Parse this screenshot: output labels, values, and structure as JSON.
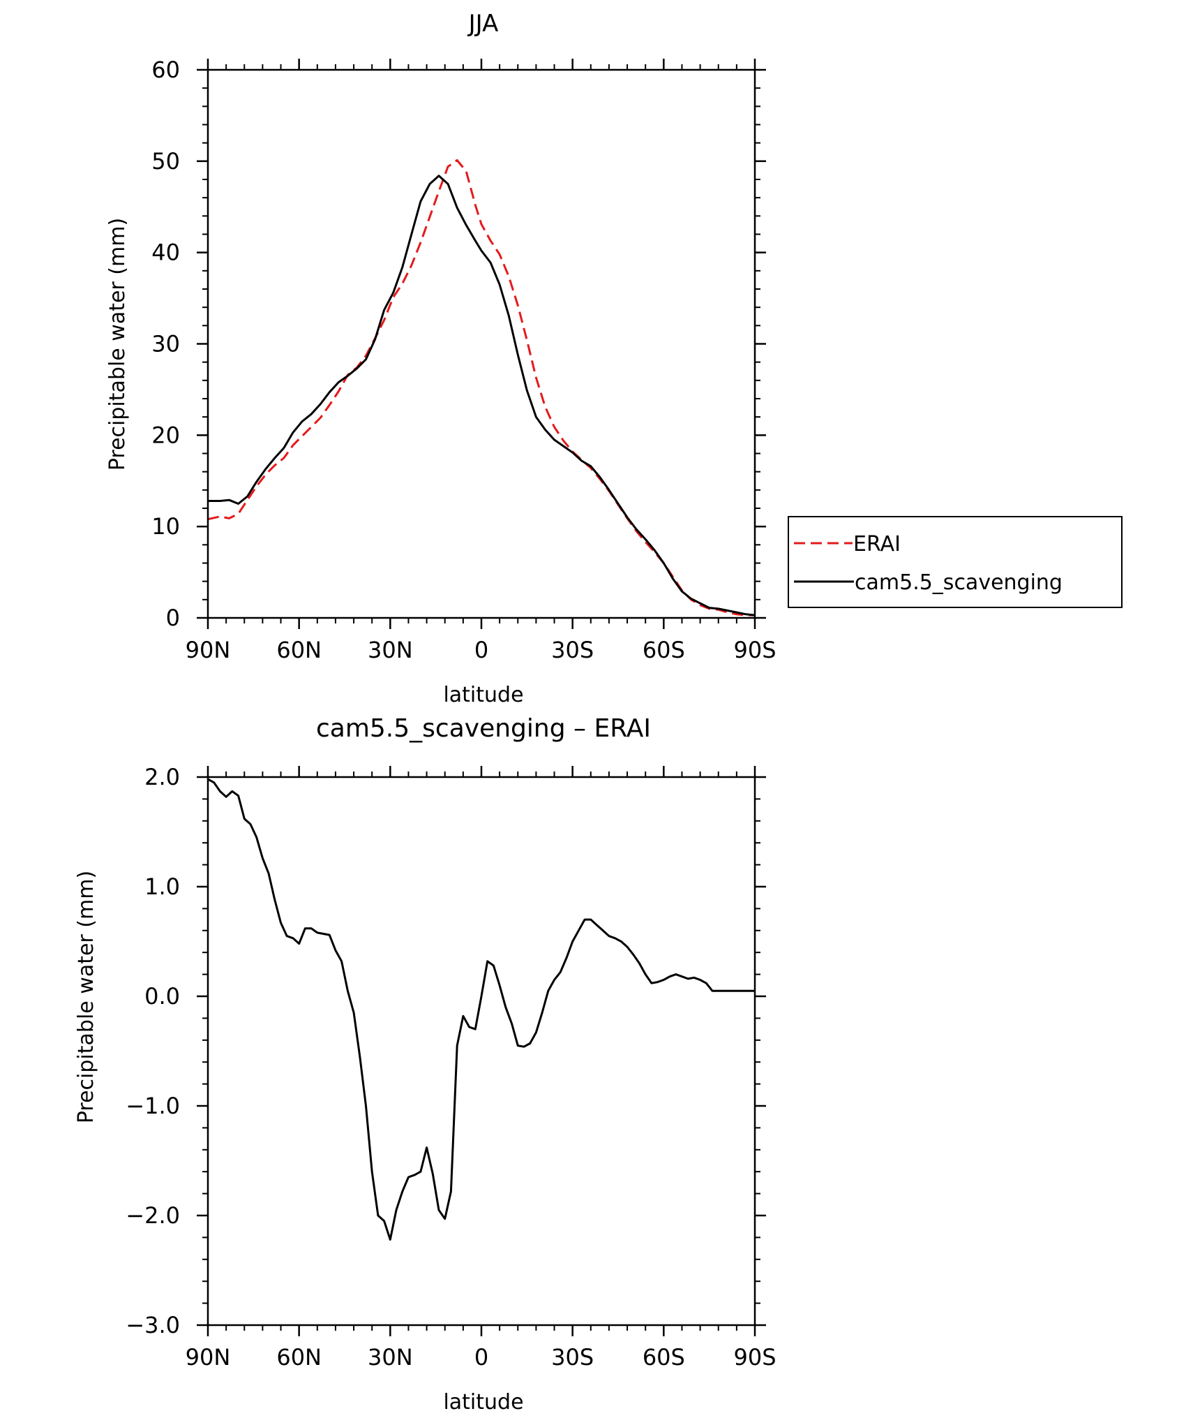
{
  "chart_data": [
    {
      "type": "line",
      "title": "JJA",
      "xlabel": "latitude",
      "ylabel": "Precipitable water (mm)",
      "xlim": [
        90,
        -90
      ],
      "ylim": [
        0,
        60
      ],
      "x_ticks": [
        90,
        60,
        30,
        0,
        -30,
        -60,
        -90
      ],
      "x_tick_labels": [
        "90N",
        "60N",
        "30N",
        "0",
        "30S",
        "60S",
        "90S"
      ],
      "y_ticks": [
        0,
        10,
        20,
        30,
        40,
        50,
        60
      ],
      "y_tick_labels": [
        "0",
        "10",
        "20",
        "30",
        "40",
        "50",
        "60"
      ],
      "grid": false,
      "legend": "right",
      "series": [
        {
          "name": "ERAI",
          "color": "#e41a1c",
          "dash": "dashed",
          "x": [
            90,
            86,
            83,
            80,
            77,
            74,
            71,
            68,
            65,
            62,
            59,
            56,
            53,
            50,
            47,
            44,
            41,
            38,
            35,
            32,
            29,
            26,
            23,
            20,
            17,
            14,
            11,
            8,
            5,
            2,
            0,
            -3,
            -6,
            -9,
            -12,
            -15,
            -18,
            -21,
            -24,
            -27,
            -30,
            -33,
            -36,
            -39,
            -42,
            -45,
            -48,
            -51,
            -54,
            -57,
            -60,
            -63,
            -66,
            -69,
            -72,
            -75,
            -78,
            -81,
            -84,
            -87,
            -90
          ],
          "y": [
            10.8,
            11.1,
            10.9,
            11.4,
            12.9,
            14.4,
            15.7,
            16.7,
            17.5,
            18.9,
            19.9,
            20.9,
            21.9,
            23.3,
            24.8,
            26.6,
            27.4,
            28.7,
            30.6,
            32.6,
            35.1,
            36.6,
            38.6,
            41.1,
            43.9,
            46.7,
            49.4,
            50.1,
            48.9,
            45.2,
            43.1,
            41.3,
            39.8,
            37.4,
            34.2,
            30.4,
            26.3,
            23.1,
            20.9,
            19.4,
            18.2,
            17.3,
            16.4,
            15.2,
            13.9,
            12.4,
            10.9,
            9.5,
            8.3,
            7.2,
            6.0,
            4.5,
            3.0,
            2.0,
            1.4,
            1.0,
            0.9,
            0.6,
            0.4,
            0.3,
            0.3
          ]
        },
        {
          "name": "cam5.5_scavenging",
          "color": "#000000",
          "dash": "solid",
          "x": [
            90,
            86,
            83,
            80,
            77,
            74,
            71,
            68,
            65,
            62,
            59,
            56,
            53,
            50,
            47,
            44,
            41,
            38,
            35,
            32,
            29,
            26,
            23,
            20,
            17,
            14,
            11,
            8,
            5,
            2,
            0,
            -3,
            -6,
            -9,
            -12,
            -15,
            -18,
            -21,
            -24,
            -27,
            -30,
            -33,
            -36,
            -39,
            -42,
            -45,
            -48,
            -51,
            -54,
            -57,
            -60,
            -63,
            -66,
            -69,
            -72,
            -75,
            -78,
            -81,
            -84,
            -87,
            -90
          ],
          "y": [
            12.8,
            12.8,
            12.9,
            12.5,
            13.3,
            14.9,
            16.3,
            17.5,
            18.6,
            20.3,
            21.5,
            22.3,
            23.4,
            24.7,
            25.8,
            26.5,
            27.3,
            28.3,
            30.5,
            33.7,
            35.6,
            38.4,
            42.0,
            45.6,
            47.5,
            48.4,
            47.5,
            44.9,
            43.0,
            41.3,
            40.2,
            38.9,
            36.5,
            33.1,
            28.8,
            24.9,
            22.0,
            20.6,
            19.5,
            18.8,
            18.1,
            17.2,
            16.6,
            15.4,
            14.0,
            12.5,
            11.0,
            9.7,
            8.6,
            7.4,
            6.0,
            4.3,
            2.9,
            2.1,
            1.6,
            1.1,
            1.0,
            0.8,
            0.6,
            0.4,
            0.3
          ]
        }
      ]
    },
    {
      "type": "line",
      "title": "cam5.5_scavenging – ERAI",
      "xlabel": "latitude",
      "ylabel": "Precipitable water (mm)",
      "xlim": [
        90,
        -90
      ],
      "ylim": [
        -3.0,
        2.0
      ],
      "x_ticks": [
        90,
        60,
        30,
        0,
        -30,
        -60,
        -90
      ],
      "x_tick_labels": [
        "90N",
        "60N",
        "30N",
        "0",
        "30S",
        "60S",
        "90S"
      ],
      "y_ticks": [
        -3,
        -2,
        -1,
        0,
        1,
        2
      ],
      "y_tick_labels": [
        "−3.0",
        "−2.0",
        "−1.0",
        "0.0",
        "1.0",
        "2.0"
      ],
      "grid": false,
      "series": [
        {
          "color": "#000000",
          "dash": "solid",
          "x": [
            90,
            88,
            86,
            84,
            82,
            80,
            78,
            76,
            74,
            72,
            70,
            68,
            66,
            64,
            62,
            60,
            58,
            56,
            54,
            52,
            50,
            48,
            46,
            44,
            42,
            40,
            38,
            36,
            34,
            32,
            30,
            28,
            26,
            24,
            22,
            20,
            18,
            16,
            14,
            12,
            10,
            8,
            6,
            4,
            2,
            0,
            -2,
            -4,
            -6,
            -8,
            -10,
            -12,
            -14,
            -16,
            -18,
            -20,
            -22,
            -24,
            -26,
            -28,
            -30,
            -32,
            -34,
            -36,
            -38,
            -40,
            -42,
            -44,
            -46,
            -48,
            -50,
            -52,
            -54,
            -56,
            -58,
            -60,
            -62,
            -64,
            -66,
            -68,
            -70,
            -72,
            -74,
            -76,
            -78,
            -80,
            -82,
            -84,
            -86,
            -88,
            -90
          ],
          "y": [
            1.98,
            1.95,
            1.87,
            1.82,
            1.87,
            1.83,
            1.62,
            1.57,
            1.45,
            1.26,
            1.12,
            0.88,
            0.67,
            0.55,
            0.53,
            0.48,
            0.62,
            0.62,
            0.58,
            0.57,
            0.56,
            0.42,
            0.32,
            0.05,
            -0.15,
            -0.55,
            -1.0,
            -1.6,
            -2.0,
            -2.05,
            -2.22,
            -1.95,
            -1.78,
            -1.65,
            -1.63,
            -1.6,
            -1.38,
            -1.62,
            -1.95,
            -2.03,
            -1.78,
            -0.45,
            -0.18,
            -0.28,
            -0.3,
            0.0,
            0.32,
            0.28,
            0.1,
            -0.1,
            -0.25,
            -0.45,
            -0.46,
            -0.43,
            -0.33,
            -0.15,
            0.05,
            0.15,
            0.22,
            0.35,
            0.5,
            0.6,
            0.7,
            0.7,
            0.65,
            0.6,
            0.55,
            0.53,
            0.5,
            0.45,
            0.38,
            0.3,
            0.2,
            0.12,
            0.13,
            0.15,
            0.18,
            0.2,
            0.18,
            0.16,
            0.17,
            0.15,
            0.12,
            0.05,
            0.05,
            0.05,
            0.05,
            0.05,
            0.05,
            0.05,
            0.05
          ]
        }
      ]
    }
  ]
}
